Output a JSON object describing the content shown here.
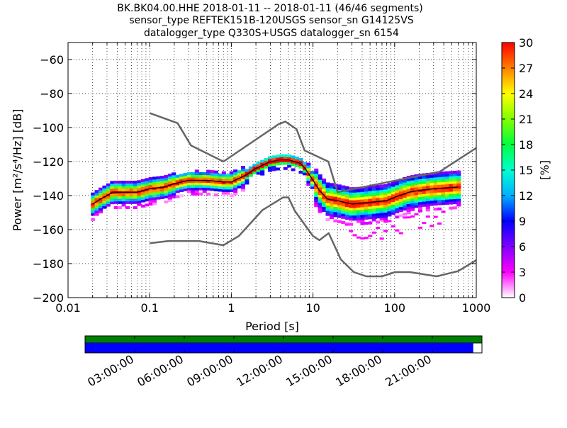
{
  "title_lines": [
    "BK.BK04.00.HHE   2018-01-11 -- 2018-01-11  (46/46 segments)",
    "sensor_type REFTEK151B-120USGS sensor_sn G14125VS",
    "datalogger_type Q330S+USGS datalogger_sn 6154"
  ],
  "chart_data": {
    "type": "heatmap",
    "xlabel": "Period [s]",
    "ylabel": "Power [m²/s⁴/Hz] [dB]",
    "xscale": "log",
    "xlim": [
      0.01,
      1000
    ],
    "ylim": [
      -200,
      -50
    ],
    "x_ticks": [
      {
        "v": 0.01,
        "label": "0.01"
      },
      {
        "v": 0.1,
        "label": "0.1"
      },
      {
        "v": 1,
        "label": "1"
      },
      {
        "v": 10,
        "label": "10"
      },
      {
        "v": 100,
        "label": "100"
      },
      {
        "v": 1000,
        "label": "1000"
      }
    ],
    "y_ticks": [
      {
        "v": -60,
        "label": "−60"
      },
      {
        "v": -80,
        "label": "−80"
      },
      {
        "v": -100,
        "label": "−100"
      },
      {
        "v": -120,
        "label": "−120"
      },
      {
        "v": -140,
        "label": "−140"
      },
      {
        "v": -160,
        "label": "−160"
      },
      {
        "v": -180,
        "label": "−180"
      },
      {
        "v": -200,
        "label": "−200"
      }
    ],
    "grid": true,
    "colorbar": {
      "label": "[%]",
      "range": [
        0,
        30
      ],
      "ticks": [
        {
          "v": 0,
          "label": "0"
        },
        {
          "v": 3,
          "label": "3"
        },
        {
          "v": 6,
          "label": "6"
        },
        {
          "v": 9,
          "label": "9"
        },
        {
          "v": 12,
          "label": "12"
        },
        {
          "v": 15,
          "label": "15"
        },
        {
          "v": 18,
          "label": "18"
        },
        {
          "v": 21,
          "label": "21"
        },
        {
          "v": 24,
          "label": "24"
        },
        {
          "v": 27,
          "label": "27"
        },
        {
          "v": 30,
          "label": "30"
        }
      ],
      "colors": [
        "#ffffff",
        "#ff00ff",
        "#8000ff",
        "#0000ff",
        "#00b0ff",
        "#00ffd0",
        "#00ff40",
        "#80ff00",
        "#ffff00",
        "#ff8000",
        "#ff0000"
      ]
    },
    "nhnm": {
      "period": [
        0.1,
        0.22,
        0.32,
        0.8,
        3.8,
        4.6,
        6.3,
        7.9,
        15.4,
        20,
        354.8,
        1000
      ],
      "db": [
        -91.5,
        -97.4,
        -110.5,
        -120,
        -98,
        -96.5,
        -101,
        -113.5,
        -120,
        -138,
        -126,
        -112
      ]
    },
    "nlnm": {
      "period": [
        0.1,
        0.17,
        0.4,
        0.8,
        1.24,
        2.4,
        4.3,
        5,
        6,
        10,
        12,
        15.6,
        21.9,
        31.6,
        45,
        70,
        101,
        154,
        328,
        600,
        1000
      ],
      "db": [
        -168,
        -166.7,
        -166.7,
        -169.2,
        -163.7,
        -148.6,
        -141.1,
        -141.1,
        -149,
        -163.8,
        -166.2,
        -162.1,
        -177.5,
        -185,
        -187.5,
        -187.5,
        -185,
        -185,
        -187.5,
        -184.4,
        -178
      ]
    },
    "mode_line": {
      "period": [
        0.02,
        0.025,
        0.03,
        0.035,
        0.05,
        0.07,
        0.1,
        0.15,
        0.2,
        0.3,
        0.5,
        0.8,
        1,
        1.5,
        2,
        3,
        4,
        5,
        6,
        7,
        8,
        10,
        12,
        15,
        20,
        30,
        50,
        80,
        100,
        150,
        200,
        300,
        600
      ],
      "db": [
        -145,
        -142,
        -140,
        -138,
        -138,
        -138,
        -136,
        -135,
        -133,
        -131,
        -131,
        -132,
        -132,
        -128,
        -124,
        -120,
        -119,
        -119,
        -120,
        -121,
        -124,
        -131,
        -137,
        -142,
        -143,
        -145,
        -144,
        -143,
        -141,
        -138,
        -137,
        -136,
        -135
      ]
    },
    "density": [
      {
        "x0": 0.018,
        "x1": 0.2,
        "fn": "low",
        "y0": -130,
        "y1": -150
      },
      {
        "x0": 0.2,
        "x1": 10,
        "fn": "mid"
      },
      {
        "x0": 10,
        "x1": 700,
        "fn": "high"
      }
    ]
  },
  "timeline": {
    "labels": [
      "03:00:00",
      "06:00:00",
      "09:00:00",
      "12:00:00",
      "15:00:00",
      "18:00:00",
      "21:00:00"
    ],
    "upper_color": "#008000",
    "lower_color": "#0000ff",
    "coverage": 0.978
  }
}
